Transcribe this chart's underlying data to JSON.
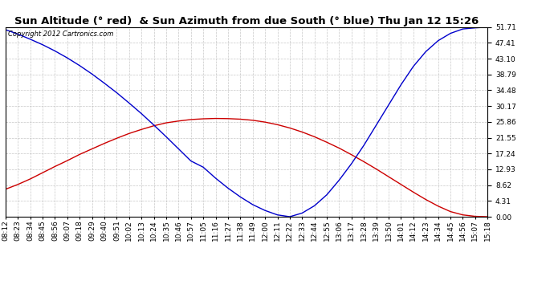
{
  "title": "Sun Altitude (° red)  & Sun Azimuth from due South (° blue) Thu Jan 12 15:26",
  "copyright_text": "Copyright 2012 Cartronics.com",
  "y_ticks": [
    0.0,
    4.31,
    8.62,
    12.93,
    17.24,
    21.55,
    25.86,
    30.17,
    34.48,
    38.79,
    43.1,
    47.41,
    51.71
  ],
  "x_labels": [
    "08:12",
    "08:23",
    "08:34",
    "08:45",
    "08:56",
    "09:07",
    "09:18",
    "09:29",
    "09:40",
    "09:51",
    "10:02",
    "10:13",
    "10:24",
    "10:35",
    "10:46",
    "10:57",
    "11:05",
    "11:16",
    "11:27",
    "11:38",
    "11:49",
    "12:00",
    "12:11",
    "12:22",
    "12:33",
    "12:44",
    "12:55",
    "13:06",
    "13:17",
    "13:28",
    "13:39",
    "13:50",
    "14:01",
    "14:12",
    "14:23",
    "14:34",
    "14:45",
    "14:56",
    "15:07",
    "15:18"
  ],
  "altitude_values": [
    7.5,
    8.8,
    10.3,
    12.0,
    13.7,
    15.3,
    17.0,
    18.5,
    20.0,
    21.4,
    22.7,
    23.8,
    24.8,
    25.6,
    26.1,
    26.5,
    26.7,
    26.8,
    26.75,
    26.6,
    26.3,
    25.8,
    25.1,
    24.2,
    23.1,
    21.8,
    20.3,
    18.7,
    16.9,
    15.0,
    13.0,
    10.9,
    8.8,
    6.7,
    4.7,
    2.9,
    1.4,
    0.5,
    0.1,
    0.0
  ],
  "azimuth_values": [
    51.0,
    49.8,
    48.4,
    46.9,
    45.2,
    43.3,
    41.2,
    38.9,
    36.4,
    33.8,
    31.0,
    28.1,
    25.0,
    21.8,
    18.5,
    15.2,
    13.5,
    10.5,
    7.8,
    5.4,
    3.3,
    1.7,
    0.5,
    0.0,
    1.0,
    3.0,
    6.0,
    10.0,
    14.5,
    19.5,
    25.0,
    30.5,
    36.0,
    41.0,
    45.0,
    48.0,
    50.0,
    51.2,
    51.5,
    51.71
  ],
  "line_color_altitude": "#cc0000",
  "line_color_azimuth": "#0000cc",
  "bg_color": "#ffffff",
  "grid_color": "#b0b0b0",
  "title_fontsize": 9.5,
  "tick_fontsize": 6.5,
  "copyright_fontsize": 6.0,
  "linewidth": 1.0
}
